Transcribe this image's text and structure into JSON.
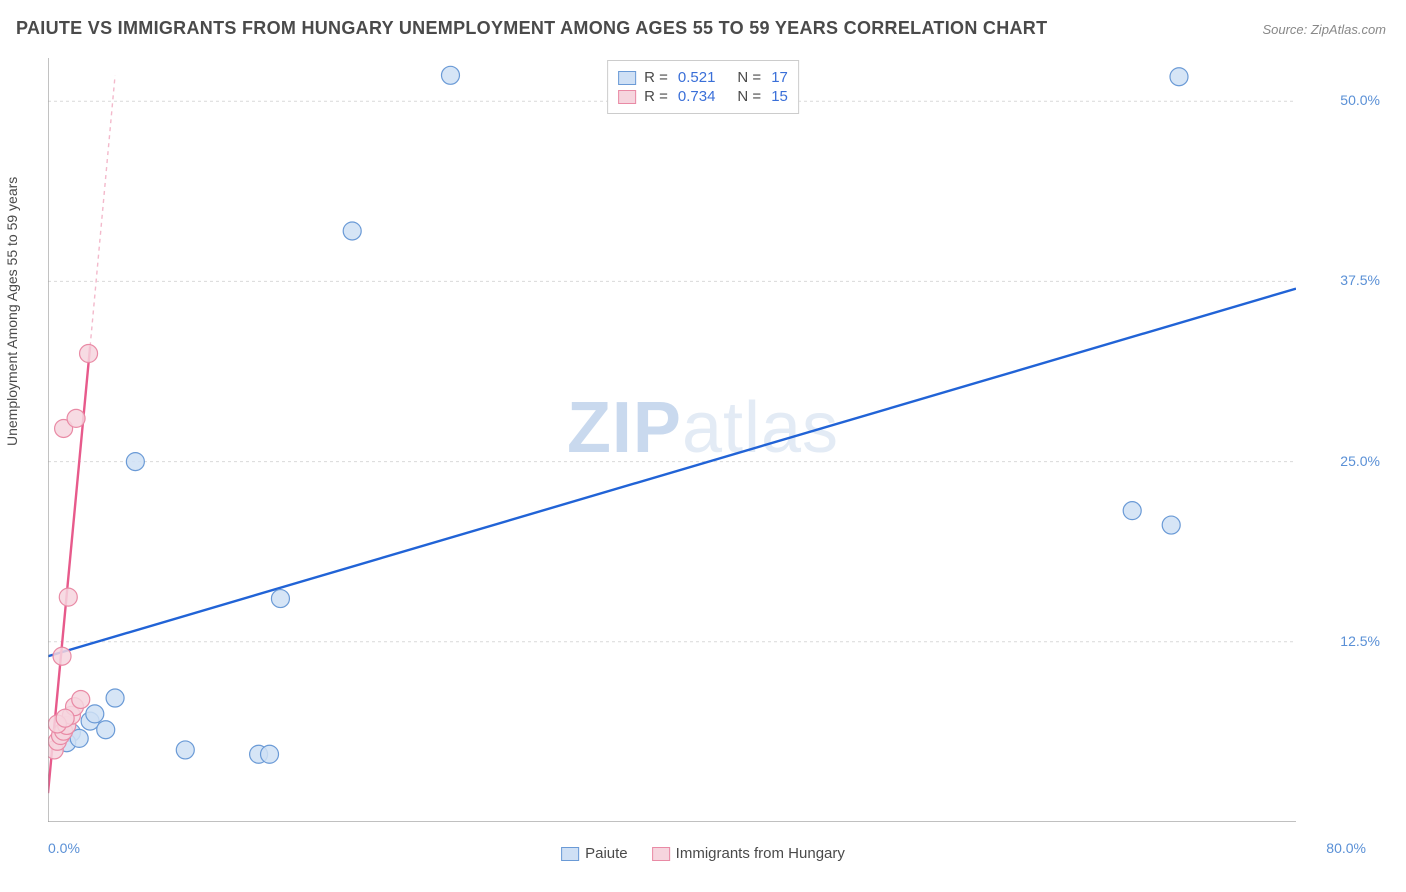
{
  "title": "PAIUTE VS IMMIGRANTS FROM HUNGARY UNEMPLOYMENT AMONG AGES 55 TO 59 YEARS CORRELATION CHART",
  "source": "Source: ZipAtlas.com",
  "ylabel": "Unemployment Among Ages 55 to 59 years",
  "watermark_bold": "ZIP",
  "watermark_rest": "atlas",
  "chart": {
    "type": "scatter",
    "xlim": [
      0,
      80
    ],
    "ylim": [
      0,
      53
    ],
    "x_axis_label_start": "0.0%",
    "x_axis_label_end": "80.0%",
    "x_ticks": [
      0,
      10,
      20,
      30,
      40,
      50,
      60,
      70,
      80
    ],
    "y_gridlines": [
      {
        "value": 12.5,
        "label": "12.5%"
      },
      {
        "value": 25.0,
        "label": "25.0%"
      },
      {
        "value": 37.5,
        "label": "37.5%"
      },
      {
        "value": 50.0,
        "label": "50.0%"
      }
    ],
    "background_color": "#ffffff",
    "grid_color": "#d9d9d9",
    "axis_color": "#9a9a9a",
    "marker_radius": 9,
    "marker_stroke_width": 1.2,
    "series": [
      {
        "name": "Paiute",
        "fill_color": "#cfe0f5",
        "stroke_color": "#6a9ad6",
        "trend_color": "#2163d6",
        "trend_dash_color": "#a9c6ef",
        "trend_width": 2.4,
        "r_value": "0.521",
        "n_value": "17",
        "points": [
          {
            "x": 1.5,
            "y": 6.2
          },
          {
            "x": 2.7,
            "y": 7.0
          },
          {
            "x": 3.7,
            "y": 6.4
          },
          {
            "x": 4.3,
            "y": 8.6
          },
          {
            "x": 5.6,
            "y": 25.0
          },
          {
            "x": 8.8,
            "y": 5.0
          },
          {
            "x": 13.5,
            "y": 4.7
          },
          {
            "x": 14.2,
            "y": 4.7
          },
          {
            "x": 14.9,
            "y": 15.5
          },
          {
            "x": 19.5,
            "y": 41.0
          },
          {
            "x": 25.8,
            "y": 51.8
          },
          {
            "x": 69.5,
            "y": 21.6
          },
          {
            "x": 72.0,
            "y": 20.6
          },
          {
            "x": 72.5,
            "y": 51.7
          },
          {
            "x": 1.2,
            "y": 5.5
          },
          {
            "x": 2.0,
            "y": 5.8
          },
          {
            "x": 3.0,
            "y": 7.5
          }
        ],
        "trend": {
          "x1": 0,
          "y1": 11.5,
          "x2": 80,
          "y2": 37.0
        }
      },
      {
        "name": "Immigrants from Hungary",
        "fill_color": "#f6d5de",
        "stroke_color": "#e98aa5",
        "trend_color": "#e75a8b",
        "trend_dash_color": "#f3b9cb",
        "trend_width": 2.4,
        "r_value": "0.734",
        "n_value": "15",
        "points": [
          {
            "x": 0.4,
            "y": 5.0
          },
          {
            "x": 0.6,
            "y": 5.6
          },
          {
            "x": 0.8,
            "y": 6.0
          },
          {
            "x": 1.0,
            "y": 6.3
          },
          {
            "x": 1.2,
            "y": 6.7
          },
          {
            "x": 1.5,
            "y": 7.4
          },
          {
            "x": 1.7,
            "y": 8.0
          },
          {
            "x": 2.1,
            "y": 8.5
          },
          {
            "x": 0.9,
            "y": 11.5
          },
          {
            "x": 1.3,
            "y": 15.6
          },
          {
            "x": 1.0,
            "y": 27.3
          },
          {
            "x": 1.8,
            "y": 28.0
          },
          {
            "x": 2.6,
            "y": 32.5
          },
          {
            "x": 0.6,
            "y": 6.8
          },
          {
            "x": 1.1,
            "y": 7.2
          }
        ],
        "trend": {
          "x1": 0,
          "y1": 2.0,
          "x2": 2.7,
          "y2": 33.0
        },
        "trend_extend": {
          "x1": 2.7,
          "y1": 33.0,
          "x2": 4.3,
          "y2": 51.8
        }
      }
    ]
  },
  "legend_top": {
    "rows": [
      {
        "swatch_fill": "#cfe0f5",
        "swatch_stroke": "#6a9ad6",
        "r_label": "R =",
        "r_value": "0.521",
        "n_label": "N =",
        "n_value": "17"
      },
      {
        "swatch_fill": "#f6d5de",
        "swatch_stroke": "#e98aa5",
        "r_label": "R =",
        "r_value": "0.734",
        "n_label": "N =",
        "n_value": "15"
      }
    ]
  },
  "legend_bottom": {
    "items": [
      {
        "swatch_fill": "#cfe0f5",
        "swatch_stroke": "#6a9ad6",
        "label": "Paiute"
      },
      {
        "swatch_fill": "#f6d5de",
        "swatch_stroke": "#e98aa5",
        "label": "Immigrants from Hungary"
      }
    ]
  }
}
